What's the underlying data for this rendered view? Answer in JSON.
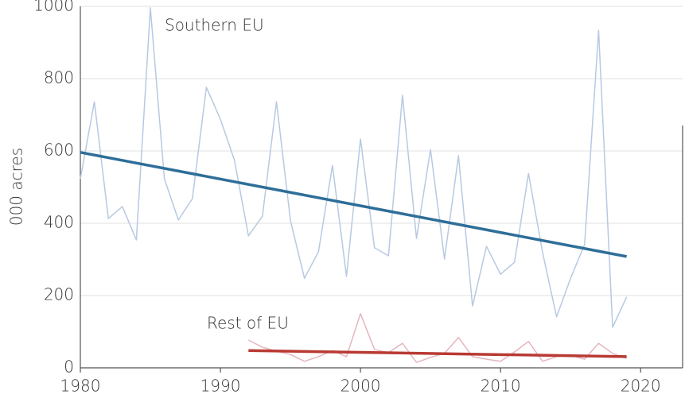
{
  "chart_data": {
    "type": "line",
    "y_label": "000 acres",
    "xlim": [
      1980,
      2023
    ],
    "xticks": [
      1980,
      1990,
      2000,
      2010,
      2020
    ],
    "ylim": [
      0,
      1000
    ],
    "yticks": [
      0,
      200,
      400,
      600,
      800,
      1000
    ],
    "grid": true,
    "series": [
      {
        "name": "Southern EU",
        "color": "#b7c9e2",
        "width": 1.5,
        "x": [
          1980,
          1981,
          1982,
          1983,
          1984,
          1985,
          1986,
          1987,
          1988,
          1989,
          1990,
          1991,
          1992,
          1993,
          1994,
          1995,
          1996,
          1997,
          1998,
          1999,
          2000,
          2001,
          2002,
          2003,
          2004,
          2005,
          2006,
          2007,
          2008,
          2009,
          2010,
          2011,
          2012,
          2013,
          2014,
          2015,
          2016,
          2017,
          2018,
          2019
        ],
        "values": [
          523,
          736,
          413,
          446,
          354,
          996,
          523,
          409,
          468,
          776,
          688,
          574,
          365,
          420,
          736,
          407,
          248,
          321,
          560,
          253,
          633,
          332,
          310,
          754,
          358,
          604,
          301,
          587,
          171,
          336,
          259,
          292,
          538,
          319,
          141,
          248,
          341,
          934,
          112,
          196
        ]
      },
      {
        "color": "#2e6e99",
        "width": 3.5,
        "x": [
          1980,
          2019
        ],
        "values": [
          596,
          308
        ]
      },
      {
        "name": "Rest of EU",
        "color": "#e5b5bd",
        "width": 1.5,
        "x": [
          1992,
          1993,
          1994,
          1995,
          1996,
          1997,
          1998,
          1999,
          2000,
          2001,
          2002,
          2003,
          2004,
          2005,
          2006,
          2007,
          2008,
          2009,
          2010,
          2011,
          2012,
          2013,
          2014,
          2015,
          2016,
          2017,
          2018,
          2019
        ],
        "values": [
          77,
          57,
          46,
          37,
          18,
          31,
          48,
          31,
          150,
          51,
          42,
          68,
          15,
          29,
          40,
          84,
          31,
          24,
          18,
          44,
          73,
          18,
          31,
          35,
          24,
          68,
          40,
          26
        ]
      },
      {
        "color": "#b83a33",
        "width": 3.5,
        "x": [
          1992,
          2019
        ],
        "values": [
          48,
          31
        ]
      }
    ]
  }
}
